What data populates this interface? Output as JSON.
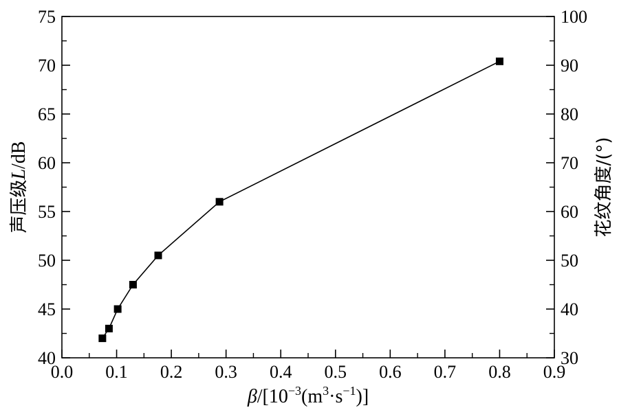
{
  "chart_data": {
    "type": "line",
    "xlabel": {
      "symbol": "β",
      "unit_open": "/[10",
      "exp1": "−3",
      "unit_mid": "(m",
      "exp2": "3",
      "unit_mid2": "·s",
      "exp3": "−1",
      "unit_close": ")]"
    },
    "ylabel_left": {
      "cjk": "声压级",
      "var": "L",
      "unit": "/dB"
    },
    "ylabel_right": "花纹角度/(°)",
    "xlim": [
      0.0,
      0.9
    ],
    "ylim_left": [
      40,
      75
    ],
    "ylim_right": [
      30,
      100
    ],
    "x_ticks": [
      "0.0",
      "0.1",
      "0.2",
      "0.3",
      "0.4",
      "0.5",
      "0.6",
      "0.7",
      "0.8",
      "0.9"
    ],
    "y_left_ticks": [
      "40",
      "45",
      "50",
      "55",
      "60",
      "65",
      "70",
      "75"
    ],
    "y_right_ticks": [
      "30",
      "40",
      "50",
      "60",
      "70",
      "80",
      "90",
      "100"
    ],
    "series": [
      {
        "x": [
          0.074,
          0.086,
          0.102,
          0.13,
          0.176,
          0.288,
          0.8
        ],
        "y": [
          42.0,
          43.0,
          45.0,
          47.5,
          50.5,
          56.0,
          70.4
        ]
      }
    ],
    "marker": "square",
    "grid": false
  }
}
